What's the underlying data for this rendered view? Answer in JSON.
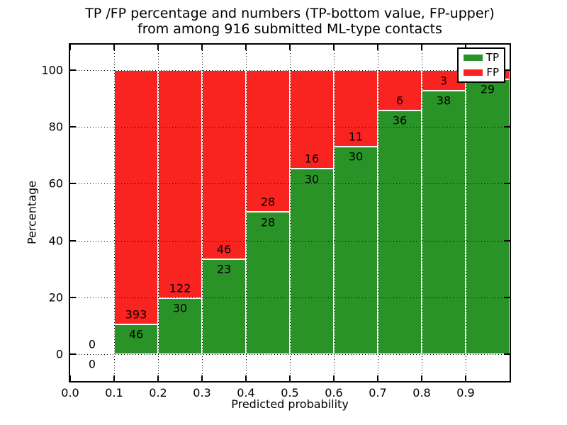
{
  "figure": {
    "title_line1": "TP /FP percentage and numbers (TP-bottom value, FP-upper)",
    "title_line2": "from among 916 submitted ML-type contacts",
    "xlabel": "Predicted probability",
    "ylabel": "Percentage"
  },
  "colors": {
    "tp_green": "#2a9328",
    "fp_red": "#f92320",
    "grid": "#000000",
    "frame": "#000000",
    "background": "#ffffff",
    "bar_edge": "#ffffff"
  },
  "chart_data": {
    "type": "bar",
    "variant": "stacked-percentage",
    "title": "TP /FP percentage and numbers (TP-bottom value, FP-upper) from among 916 submitted ML-type contacts",
    "xlabel": "Predicted probability",
    "ylabel": "Percentage",
    "total_contacts": 916,
    "xlim": [
      0.0,
      1.0
    ],
    "ylim": [
      -9.5,
      109
    ],
    "x_ticks": [
      0.0,
      0.1,
      0.2,
      0.3,
      0.4,
      0.5,
      0.6,
      0.7,
      0.8,
      0.9
    ],
    "x_tick_labels": [
      "0.0",
      "0.1",
      "0.2",
      "0.3",
      "0.4",
      "0.5",
      "0.6",
      "0.7",
      "0.8",
      "0.9"
    ],
    "y_ticks": [
      0,
      20,
      40,
      60,
      80,
      100
    ],
    "y_tick_labels": [
      "0",
      "20",
      "40",
      "60",
      "80",
      "100"
    ],
    "grid": "dotted",
    "annotation_note": "TP count printed below the TP/FP boundary, FP count above it",
    "legend": {
      "position": "upper right",
      "entries": [
        {
          "label": "TP",
          "color": "#2a9328"
        },
        {
          "label": "FP",
          "color": "#f92320"
        }
      ]
    },
    "bins": [
      {
        "x0": 0.0,
        "x1": 0.1,
        "tp": 0,
        "fp": 0,
        "tp_pct": 0.0,
        "fp_pct": 0.0
      },
      {
        "x0": 0.1,
        "x1": 0.2,
        "tp": 46,
        "fp": 393,
        "tp_pct": 10.48,
        "fp_pct": 89.52
      },
      {
        "x0": 0.2,
        "x1": 0.3,
        "tp": 30,
        "fp": 122,
        "tp_pct": 19.74,
        "fp_pct": 80.26
      },
      {
        "x0": 0.3,
        "x1": 0.4,
        "tp": 23,
        "fp": 46,
        "tp_pct": 33.33,
        "fp_pct": 66.67
      },
      {
        "x0": 0.4,
        "x1": 0.5,
        "tp": 28,
        "fp": 28,
        "tp_pct": 50.0,
        "fp_pct": 50.0
      },
      {
        "x0": 0.5,
        "x1": 0.6,
        "tp": 30,
        "fp": 16,
        "tp_pct": 65.22,
        "fp_pct": 34.78
      },
      {
        "x0": 0.6,
        "x1": 0.7,
        "tp": 30,
        "fp": 11,
        "tp_pct": 73.17,
        "fp_pct": 26.83
      },
      {
        "x0": 0.7,
        "x1": 0.8,
        "tp": 36,
        "fp": 6,
        "tp_pct": 85.71,
        "fp_pct": 14.29
      },
      {
        "x0": 0.8,
        "x1": 0.9,
        "tp": 38,
        "fp": 3,
        "tp_pct": 92.68,
        "fp_pct": 7.32
      },
      {
        "x0": 0.9,
        "x1": 1.0,
        "tp": 29,
        "fp": 1,
        "tp_pct": 96.67,
        "fp_pct": 3.33
      }
    ]
  }
}
